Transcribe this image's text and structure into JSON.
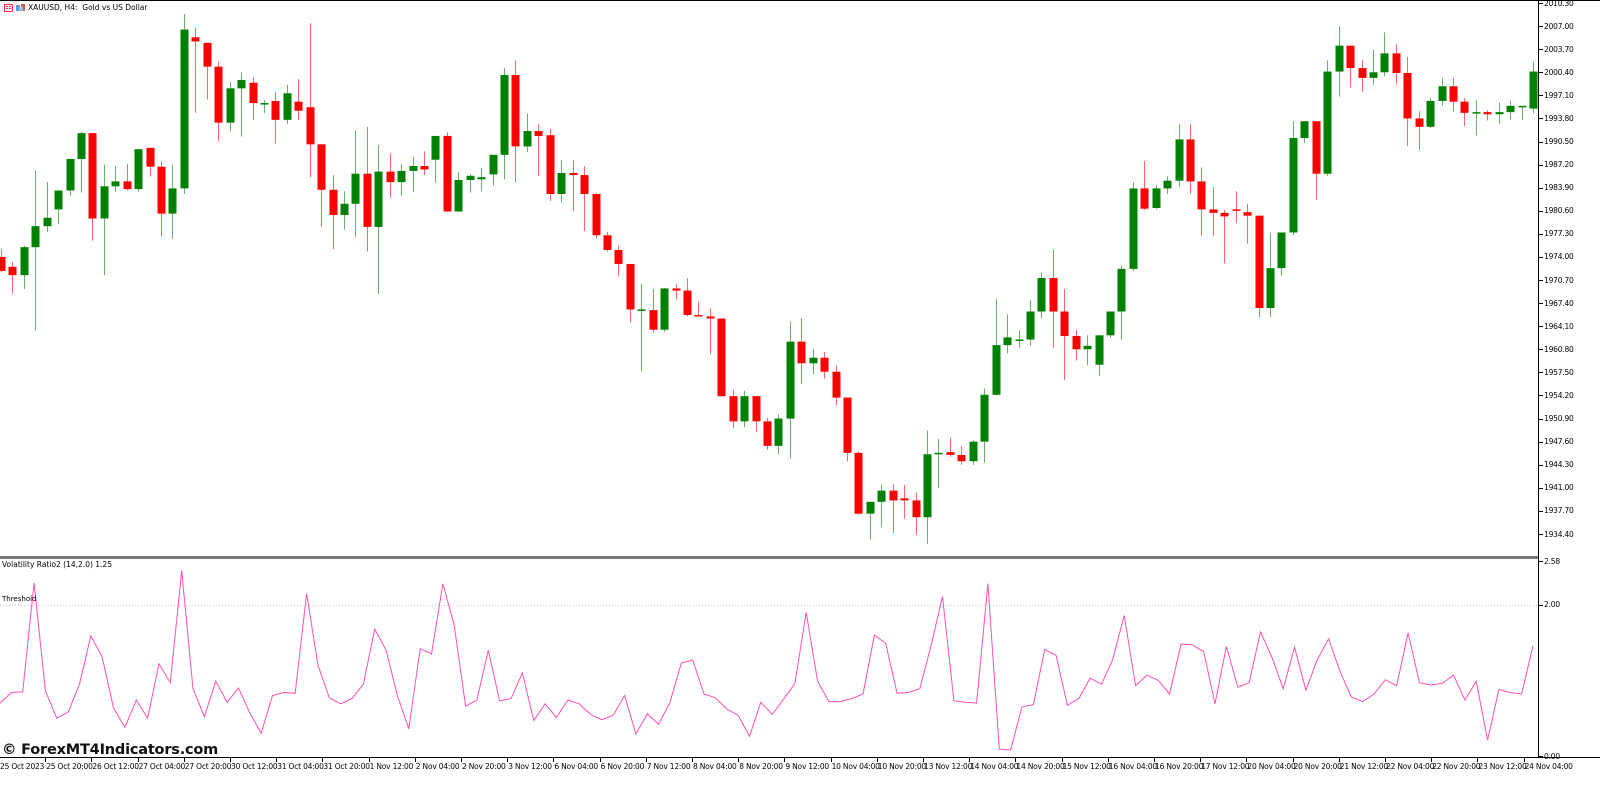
{
  "window": {
    "symbol_title": "XAUUSD, H4:  Gold vs US Dollar",
    "icons": [
      "indicator-list-icon",
      "chart-objects-icon"
    ]
  },
  "colors": {
    "bull": "#008000",
    "bear": "#ff0000",
    "indicator_line": "#ff4fb6",
    "threshold_line": "#c0c0c0",
    "separator": "#777777",
    "background": "#ffffff"
  },
  "indicator": {
    "title": "Volatility Ratio2 (14,2.0) 1.25",
    "threshold_label": "Threshold",
    "threshold_value": 2.0
  },
  "watermark": "© ForexMT4Indicators.com",
  "chart_data": [
    {
      "type": "candlestick",
      "title": "XAUUSD, H4: Gold vs US Dollar",
      "xlabel": "",
      "ylabel": "",
      "ylim": [
        1932.0,
        2010.3
      ],
      "y_ticks": [
        "2010.30",
        "2007.00",
        "2003.70",
        "2000.40",
        "1997.10",
        "1993.80",
        "1990.50",
        "1987.20",
        "1983.90",
        "1980.60",
        "1977.30",
        "1974.00",
        "1970.70",
        "1967.40",
        "1964.10",
        "1960.80",
        "1957.50",
        "1954.20",
        "1950.90",
        "1947.60",
        "1944.30",
        "1941.00",
        "1937.70",
        "1934.40"
      ],
      "x_ticks": [
        "25 Oct 2023",
        "25 Oct 20:00",
        "26 Oct 12:00",
        "27 Oct 04:00",
        "27 Oct 20:00",
        "30 Oct 12:00",
        "31 Oct 04:00",
        "31 Oct 20:00",
        "1 Nov 12:00",
        "2 Nov 04:00",
        "2 Nov 20:00",
        "3 Nov 12:00",
        "6 Nov 04:00",
        "6 Nov 20:00",
        "7 Nov 12:00",
        "8 Nov 04:00",
        "8 Nov 20:00",
        "9 Nov 12:00",
        "10 Nov 04:00",
        "10 Nov 20:00",
        "13 Nov 12:00",
        "14 Nov 04:00",
        "14 Nov 20:00",
        "15 Nov 12:00",
        "16 Nov 04:00",
        "16 Nov 20:00",
        "17 Nov 12:00",
        "20 Nov 04:00",
        "20 Nov 20:00",
        "21 Nov 12:00",
        "22 Nov 04:00",
        "22 Nov 20:00",
        "23 Nov 12:00",
        "24 Nov 04:00"
      ],
      "grid": false,
      "candles_ohlc": [
        [
          1974.0,
          1975.1,
          1971.8,
          1972.0
        ],
        [
          1972.6,
          1973.3,
          1968.8,
          1971.4
        ],
        [
          1971.4,
          1975.6,
          1969.4,
          1975.4
        ],
        [
          1975.4,
          1986.4,
          1963.5,
          1978.4
        ],
        [
          1978.4,
          1984.7,
          1977.6,
          1979.6
        ],
        [
          1980.8,
          1983.0,
          1978.7,
          1983.5
        ],
        [
          1983.5,
          1986.2,
          1982.8,
          1988.0
        ],
        [
          1988.0,
          1991.9,
          1983.2,
          1991.7
        ],
        [
          1991.7,
          1991.7,
          1976.3,
          1979.5
        ],
        [
          1979.5,
          1987.2,
          1971.4,
          1984.1
        ],
        [
          1984.1,
          1987.0,
          1983.3,
          1984.8
        ],
        [
          1984.8,
          1987.3,
          1983.5,
          1983.7
        ],
        [
          1983.7,
          1989.4,
          1983.3,
          1989.4
        ],
        [
          1989.6,
          1989.6,
          1985.5,
          1986.9
        ],
        [
          1986.9,
          1987.6,
          1976.9,
          1980.2
        ],
        [
          1980.2,
          1987.2,
          1976.6,
          1983.8
        ],
        [
          1983.8,
          2008.7,
          1983.0,
          2006.5
        ],
        [
          2005.4,
          2006.8,
          1994.6,
          2004.8
        ],
        [
          2004.6,
          2004.6,
          1996.5,
          2001.2
        ],
        [
          2001.2,
          2001.9,
          1990.6,
          1993.2
        ],
        [
          1993.2,
          1999.0,
          1992.0,
          1998.1
        ],
        [
          1998.1,
          2000.4,
          1991.2,
          1999.3
        ],
        [
          1998.9,
          1999.7,
          1993.6,
          1996.0
        ],
        [
          1996.0,
          1996.4,
          1994.6,
          1996.0
        ],
        [
          1996.3,
          1997.6,
          1990.2,
          1993.6
        ],
        [
          1993.6,
          1998.6,
          1993.0,
          1997.4
        ],
        [
          1996.2,
          1999.4,
          1993.6,
          1994.9
        ],
        [
          1995.4,
          2007.4,
          1985.4,
          1990.1
        ],
        [
          1990.1,
          1990.1,
          1978.3,
          1983.6
        ],
        [
          1983.6,
          1985.7,
          1975.1,
          1980.0
        ],
        [
          1980.0,
          1983.4,
          1977.9,
          1981.6
        ],
        [
          1981.6,
          1992.1,
          1976.8,
          1985.9
        ],
        [
          1985.9,
          1992.6,
          1974.8,
          1978.3
        ],
        [
          1978.3,
          1990.0,
          1968.7,
          1986.2
        ],
        [
          1986.2,
          1988.8,
          1982.5,
          1984.7
        ],
        [
          1984.7,
          1987.3,
          1982.8,
          1986.3
        ],
        [
          1986.3,
          1988.3,
          1983.3,
          1987.0
        ],
        [
          1987.0,
          1989.1,
          1985.7,
          1986.5
        ],
        [
          1987.9,
          1988.5,
          1984.6,
          1991.3
        ],
        [
          1991.3,
          1991.8,
          1980.4,
          1980.5
        ],
        [
          1980.5,
          1986.2,
          1980.4,
          1985.0
        ],
        [
          1985.0,
          1985.8,
          1983.2,
          1985.6
        ],
        [
          1985.1,
          1986.7,
          1983.4,
          1985.4
        ],
        [
          1985.8,
          1988.5,
          1984.2,
          1988.6
        ],
        [
          1988.6,
          2001.0,
          1985.1,
          2000.0
        ],
        [
          2000.0,
          2002.1,
          1984.7,
          1989.8
        ],
        [
          1989.8,
          1994.5,
          1989.0,
          1992.0
        ],
        [
          1992.0,
          1993.0,
          1985.6,
          1991.3
        ],
        [
          1991.4,
          1992.3,
          1982.0,
          1983.0
        ],
        [
          1983.0,
          1987.8,
          1981.8,
          1986.0
        ],
        [
          1986.0,
          1987.8,
          1980.6,
          1985.7
        ],
        [
          1985.7,
          1987.0,
          1977.7,
          1983.0
        ],
        [
          1983.0,
          1983.1,
          1976.7,
          1977.1
        ],
        [
          1977.1,
          1977.6,
          1974.8,
          1975.0
        ],
        [
          1975.0,
          1975.6,
          1971.2,
          1973.0
        ],
        [
          1973.0,
          1973.0,
          1964.6,
          1966.5
        ],
        [
          1966.5,
          1970.2,
          1957.7,
          1966.5
        ],
        [
          1966.4,
          1969.4,
          1963.2,
          1963.6
        ],
        [
          1963.6,
          1969.6,
          1963.3,
          1969.5
        ],
        [
          1969.5,
          1970.1,
          1967.9,
          1969.2
        ],
        [
          1969.2,
          1971.0,
          1965.5,
          1965.7
        ],
        [
          1965.7,
          1967.6,
          1965.5,
          1965.5
        ],
        [
          1965.5,
          1966.6,
          1960.1,
          1965.2
        ],
        [
          1965.2,
          1965.2,
          1954.0,
          1954.1
        ],
        [
          1954.1,
          1955.0,
          1949.5,
          1950.5
        ],
        [
          1950.5,
          1954.9,
          1949.7,
          1954.1
        ],
        [
          1954.1,
          1954.1,
          1949.0,
          1950.5
        ],
        [
          1950.5,
          1951.0,
          1946.4,
          1947.0
        ],
        [
          1947.0,
          1951.5,
          1945.8,
          1950.9
        ],
        [
          1950.9,
          1964.8,
          1945.2,
          1961.9
        ],
        [
          1961.9,
          1965.3,
          1955.8,
          1958.8
        ],
        [
          1958.8,
          1960.8,
          1957.2,
          1959.6
        ],
        [
          1959.6,
          1960.4,
          1956.6,
          1957.6
        ],
        [
          1957.6,
          1958.5,
          1952.8,
          1953.9
        ],
        [
          1953.9,
          1953.9,
          1944.8,
          1946.0
        ],
        [
          1946.0,
          1946.2,
          1937.2,
          1937.3
        ],
        [
          1937.3,
          1938.6,
          1933.6,
          1939.0
        ],
        [
          1939.0,
          1941.4,
          1935.4,
          1940.6
        ],
        [
          1940.6,
          1941.5,
          1934.5,
          1939.2
        ],
        [
          1939.5,
          1941.4,
          1936.6,
          1939.2
        ],
        [
          1939.2,
          1940.3,
          1934.3,
          1936.8
        ],
        [
          1936.8,
          1949.2,
          1933.0,
          1945.8
        ],
        [
          1945.8,
          1948.0,
          1941.0,
          1946.0
        ],
        [
          1946.1,
          1948.2,
          1945.4,
          1945.7
        ],
        [
          1945.7,
          1947.0,
          1944.3,
          1944.8
        ],
        [
          1944.8,
          1947.8,
          1944.3,
          1947.6
        ],
        [
          1947.6,
          1955.2,
          1944.6,
          1954.3
        ],
        [
          1954.3,
          1968.0,
          1954.2,
          1961.4
        ],
        [
          1961.4,
          1965.8,
          1960.2,
          1962.5
        ],
        [
          1962.2,
          1963.5,
          1961.0,
          1962.2
        ],
        [
          1962.2,
          1967.8,
          1961.3,
          1966.2
        ],
        [
          1966.2,
          1971.8,
          1965.2,
          1971.0
        ],
        [
          1971.0,
          1975.0,
          1961.0,
          1966.2
        ],
        [
          1966.2,
          1969.4,
          1956.4,
          1962.7
        ],
        [
          1962.7,
          1963.6,
          1959.2,
          1960.8
        ],
        [
          1960.8,
          1962.8,
          1958.5,
          1961.3
        ],
        [
          1958.6,
          1962.0,
          1957.0,
          1962.8
        ],
        [
          1962.8,
          1965.0,
          1962.4,
          1966.2
        ],
        [
          1966.2,
          1972.8,
          1962.2,
          1972.3
        ],
        [
          1972.3,
          1984.7,
          1972.0,
          1983.8
        ],
        [
          1983.8,
          1987.7,
          1980.7,
          1980.9
        ],
        [
          1981.0,
          1984.3,
          1980.8,
          1983.8
        ],
        [
          1983.8,
          1985.5,
          1983.0,
          1984.9
        ],
        [
          1984.9,
          1993.0,
          1984.0,
          1990.8
        ],
        [
          1990.8,
          1993.0,
          1983.0,
          1984.8
        ],
        [
          1984.8,
          1986.8,
          1977.0,
          1980.8
        ],
        [
          1980.8,
          1984.0,
          1977.0,
          1980.3
        ],
        [
          1980.3,
          1980.7,
          1973.1,
          1979.8
        ],
        [
          1980.8,
          1983.4,
          1978.9,
          1980.7
        ],
        [
          1980.4,
          1981.6,
          1975.9,
          1979.9
        ],
        [
          1979.9,
          1979.9,
          1965.4,
          1966.7
        ],
        [
          1966.7,
          1977.4,
          1965.4,
          1972.4
        ],
        [
          1972.4,
          1977.5,
          1971.3,
          1977.5
        ],
        [
          1977.5,
          1993.4,
          1977.1,
          1991.0
        ],
        [
          1991.0,
          1993.4,
          1990.3,
          1993.4
        ],
        [
          1993.4,
          1993.4,
          1982.2,
          1985.9
        ],
        [
          1985.9,
          2002.1,
          1985.6,
          2000.5
        ],
        [
          2000.5,
          2007.0,
          1996.9,
          2004.2
        ],
        [
          2004.2,
          2004.2,
          1998.3,
          2001.0
        ],
        [
          2001.0,
          2002.1,
          1997.6,
          1999.6
        ],
        [
          1999.6,
          2003.6,
          1998.6,
          2000.4
        ],
        [
          2000.4,
          2006.1,
          1999.8,
          2003.1
        ],
        [
          2003.1,
          2004.4,
          1998.7,
          2000.3
        ],
        [
          2000.3,
          2002.6,
          1989.8,
          1993.8
        ],
        [
          1993.8,
          1994.9,
          1989.3,
          1992.6
        ],
        [
          1992.6,
          1996.8,
          1992.4,
          1996.3
        ],
        [
          1996.3,
          1999.6,
          1995.6,
          1998.4
        ],
        [
          1998.4,
          1999.6,
          1994.8,
          1996.2
        ],
        [
          1996.2,
          1996.7,
          1992.7,
          1994.6
        ],
        [
          1994.7,
          1996.4,
          1991.4,
          1994.7
        ],
        [
          1994.7,
          1995.0,
          1993.5,
          1994.4
        ],
        [
          1994.4,
          1996.1,
          1993.0,
          1994.7
        ],
        [
          1994.7,
          1996.3,
          1993.6,
          1995.6
        ],
        [
          1995.6,
          1995.6,
          1993.6,
          1995.6
        ],
        [
          1995.2,
          2001.9,
          1994.5,
          2000.5
        ]
      ]
    },
    {
      "type": "line",
      "title": "Volatility Ratio2 (14,2.0) 1.25",
      "ylim": [
        0.0,
        2.58
      ],
      "y_ticks": [
        "2.58",
        "2.00",
        "0.00"
      ],
      "threshold": 2.0,
      "series": [
        {
          "name": "Volatility Ratio2",
          "values": [
            0.7,
            0.84,
            0.85,
            2.29,
            0.86,
            0.5,
            0.58,
            0.95,
            1.59,
            1.31,
            0.63,
            0.38,
            0.74,
            0.5,
            1.22,
            0.97,
            2.45,
            0.89,
            0.52,
            0.99,
            0.71,
            0.9,
            0.57,
            0.3,
            0.8,
            0.84,
            0.83,
            2.15,
            1.2,
            0.77,
            0.69,
            0.76,
            0.95,
            1.68,
            1.4,
            0.8,
            0.36,
            1.42,
            1.35,
            2.28,
            1.73,
            0.66,
            0.74,
            1.4,
            0.73,
            0.76,
            1.1,
            0.47,
            0.69,
            0.51,
            0.74,
            0.69,
            0.55,
            0.48,
            0.54,
            0.8,
            0.29,
            0.56,
            0.42,
            0.71,
            1.23,
            1.27,
            0.82,
            0.77,
            0.62,
            0.54,
            0.26,
            0.71,
            0.55,
            0.75,
            0.96,
            1.9,
            0.99,
            0.72,
            0.72,
            0.76,
            0.82,
            1.6,
            1.49,
            0.83,
            0.84,
            0.89,
            1.47,
            2.11,
            0.73,
            0.71,
            0.7,
            2.28,
            0.09,
            0.08,
            0.65,
            0.68,
            1.41,
            1.33,
            0.67,
            0.76,
            1.03,
            0.95,
            1.28,
            1.86,
            0.93,
            1.07,
            1.0,
            0.82,
            1.48,
            1.47,
            1.38,
            0.69,
            1.45,
            0.91,
            0.97,
            1.64,
            1.31,
            0.89,
            1.44,
            0.87,
            1.27,
            1.55,
            1.12,
            0.78,
            0.72,
            0.82,
            1.01,
            0.93,
            1.63,
            0.97,
            0.94,
            0.96,
            1.07,
            0.74,
            0.99,
            0.21,
            0.88,
            0.84,
            0.82,
            1.46
          ]
        }
      ]
    }
  ]
}
